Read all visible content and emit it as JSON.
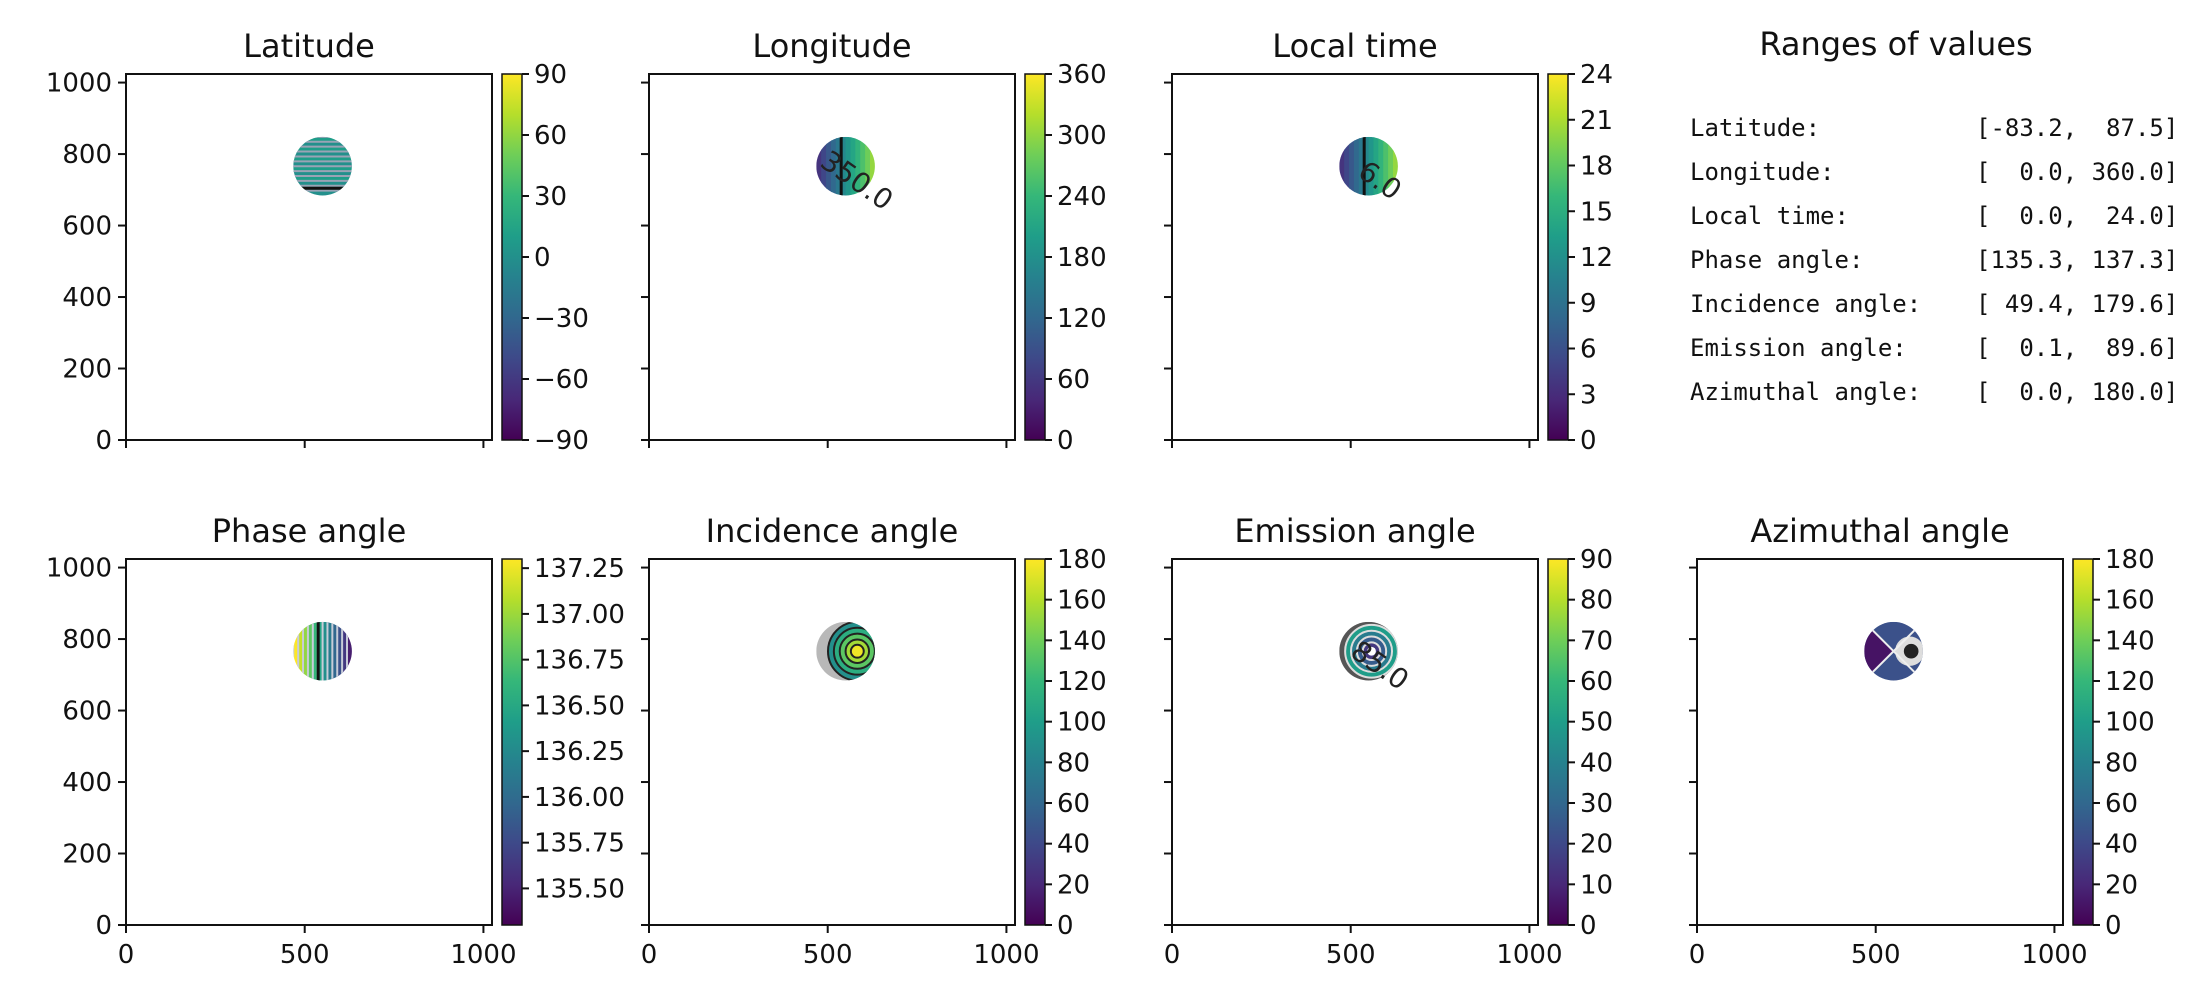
{
  "chart_data": [
    {
      "type": "heatmap",
      "title": "Latitude",
      "xlim": [
        0,
        1024
      ],
      "ylim": [
        0,
        1024
      ],
      "x_ticks": [
        0,
        500,
        1000
      ],
      "x_tick_labels": [
        "",
        "",
        ""
      ],
      "y_ticks": [
        0,
        200,
        400,
        600,
        800,
        1000
      ],
      "y_tick_labels": [
        "0",
        "200",
        "400",
        "600",
        "800",
        "1000"
      ],
      "colorbar": {
        "range": [
          -90,
          90
        ],
        "ticks": [
          -90,
          -60,
          -30,
          0,
          30,
          60,
          90
        ],
        "tick_labels": [
          "−90",
          "−60",
          "−30",
          "0",
          "30",
          "60",
          "90"
        ]
      },
      "disk": {
        "cx": 550,
        "cy": 766,
        "r": 82
      },
      "pattern": "horizontal",
      "contour_labels": []
    },
    {
      "type": "heatmap",
      "title": "Longitude",
      "xlim": [
        0,
        1024
      ],
      "ylim": [
        0,
        1024
      ],
      "x_ticks": [
        0,
        500,
        1000
      ],
      "x_tick_labels": [
        "",
        "",
        ""
      ],
      "y_ticks": [
        0,
        200,
        400,
        600,
        800,
        1000
      ],
      "y_tick_labels": [
        "",
        "",
        "",
        "",
        "",
        ""
      ],
      "colorbar": {
        "range": [
          0,
          360
        ],
        "ticks": [
          0,
          60,
          120,
          180,
          240,
          300,
          360
        ],
        "tick_labels": [
          "0",
          "60",
          "120",
          "180",
          "240",
          "300",
          "360"
        ]
      },
      "disk": {
        "cx": 550,
        "cy": 766,
        "r": 82
      },
      "pattern": "vertical",
      "contour_labels": [
        "350.0"
      ]
    },
    {
      "type": "heatmap",
      "title": "Local time",
      "xlim": [
        0,
        1024
      ],
      "ylim": [
        0,
        1024
      ],
      "x_ticks": [
        0,
        500,
        1000
      ],
      "x_tick_labels": [
        "",
        "",
        ""
      ],
      "y_ticks": [
        0,
        200,
        400,
        600,
        800,
        1000
      ],
      "y_tick_labels": [
        "",
        "",
        "",
        "",
        "",
        ""
      ],
      "colorbar": {
        "range": [
          0,
          24
        ],
        "ticks": [
          0,
          3,
          6,
          9,
          12,
          15,
          18,
          21,
          24
        ],
        "tick_labels": [
          "0",
          "3",
          "6",
          "9",
          "12",
          "15",
          "18",
          "21",
          "24"
        ]
      },
      "disk": {
        "cx": 550,
        "cy": 766,
        "r": 82
      },
      "pattern": "vertical",
      "contour_labels": [
        "6.0"
      ]
    },
    {
      "type": "heatmap",
      "title": "Phase angle",
      "xlim": [
        0,
        1024
      ],
      "ylim": [
        0,
        1024
      ],
      "x_ticks": [
        0,
        500,
        1000
      ],
      "x_tick_labels": [
        "0",
        "500",
        "1000"
      ],
      "y_ticks": [
        0,
        200,
        400,
        600,
        800,
        1000
      ],
      "y_tick_labels": [
        "0",
        "200",
        "400",
        "600",
        "800",
        "1000"
      ],
      "colorbar": {
        "range": [
          135.3,
          137.3
        ],
        "ticks": [
          135.5,
          135.75,
          136.0,
          136.25,
          136.5,
          136.75,
          137.0,
          137.25
        ],
        "tick_labels": [
          "135.50",
          "135.75",
          "136.00",
          "136.25",
          "136.50",
          "136.75",
          "137.00",
          "137.25"
        ]
      },
      "disk": {
        "cx": 550,
        "cy": 766,
        "r": 82
      },
      "pattern": "vertical",
      "contour_labels": []
    },
    {
      "type": "heatmap",
      "title": "Incidence angle",
      "xlim": [
        0,
        1024
      ],
      "ylim": [
        0,
        1024
      ],
      "x_ticks": [
        0,
        500,
        1000
      ],
      "x_tick_labels": [
        "0",
        "500",
        "1000"
      ],
      "y_ticks": [
        0,
        200,
        400,
        600,
        800,
        1000
      ],
      "y_tick_labels": [
        "",
        "",
        "",
        "",
        "",
        ""
      ],
      "colorbar": {
        "range": [
          0,
          180
        ],
        "ticks": [
          0,
          20,
          40,
          60,
          80,
          100,
          120,
          140,
          160,
          180
        ],
        "tick_labels": [
          "0",
          "20",
          "40",
          "60",
          "80",
          "100",
          "120",
          "140",
          "160",
          "180"
        ]
      },
      "disk": {
        "cx": 550,
        "cy": 766,
        "r": 82
      },
      "pattern": "rings",
      "contour_labels": []
    },
    {
      "type": "heatmap",
      "title": "Emission angle",
      "xlim": [
        0,
        1024
      ],
      "ylim": [
        0,
        1024
      ],
      "x_ticks": [
        0,
        500,
        1000
      ],
      "x_tick_labels": [
        "0",
        "500",
        "1000"
      ],
      "y_ticks": [
        0,
        200,
        400,
        600,
        800,
        1000
      ],
      "y_tick_labels": [
        "",
        "",
        "",
        "",
        "",
        ""
      ],
      "colorbar": {
        "range": [
          0,
          90
        ],
        "ticks": [
          0,
          10,
          20,
          30,
          40,
          50,
          60,
          70,
          80,
          90
        ],
        "tick_labels": [
          "0",
          "10",
          "20",
          "30",
          "40",
          "50",
          "60",
          "70",
          "80",
          "90"
        ]
      },
      "disk": {
        "cx": 550,
        "cy": 766,
        "r": 82
      },
      "pattern": "center",
      "contour_labels": [
        "85.0"
      ]
    },
    {
      "type": "heatmap",
      "title": "Azimuthal angle",
      "xlim": [
        0,
        1024
      ],
      "ylim": [
        0,
        1024
      ],
      "x_ticks": [
        0,
        500,
        1000
      ],
      "x_tick_labels": [
        "0",
        "500",
        "1000"
      ],
      "y_ticks": [
        0,
        200,
        400,
        600,
        800,
        1000
      ],
      "y_tick_labels": [
        "",
        "",
        "",
        "",
        "",
        ""
      ],
      "colorbar": {
        "range": [
          0,
          180
        ],
        "ticks": [
          0,
          20,
          40,
          60,
          80,
          100,
          120,
          140,
          160,
          180
        ],
        "tick_labels": [
          "0",
          "20",
          "40",
          "60",
          "80",
          "100",
          "120",
          "140",
          "160",
          "180"
        ]
      },
      "disk": {
        "cx": 550,
        "cy": 766,
        "r": 82
      },
      "pattern": "azimuth",
      "contour_labels": []
    }
  ],
  "info_panel": {
    "title": "Ranges of values",
    "rows": [
      {
        "label": "Latitude:",
        "value": "[-83.2,  87.5]"
      },
      {
        "label": "Longitude:",
        "value": "[  0.0, 360.0]"
      },
      {
        "label": "Local time:",
        "value": "[  0.0,  24.0]"
      },
      {
        "label": "Phase angle:",
        "value": "[135.3, 137.3]"
      },
      {
        "label": "Incidence angle:",
        "value": "[ 49.4, 179.6]"
      },
      {
        "label": "Emission angle:",
        "value": "[  0.1,  89.6]"
      },
      {
        "label": "Azimuthal angle:",
        "value": "[  0.0, 180.0]"
      }
    ]
  },
  "colormap": [
    "#440154",
    "#482878",
    "#3e4989",
    "#31688e",
    "#26828e",
    "#1f9e89",
    "#35b779",
    "#6ece58",
    "#b5de2b",
    "#fde725"
  ]
}
